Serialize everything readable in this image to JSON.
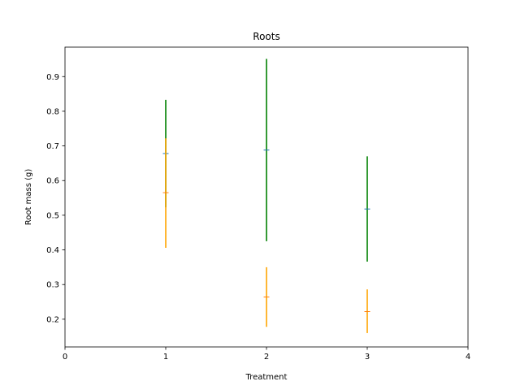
{
  "chart_data": {
    "type": "errorbar",
    "title": "Roots",
    "xlabel": "Treatment",
    "ylabel": "Root mass (g)",
    "xlim": [
      0,
      4
    ],
    "ylim": [
      0.12,
      0.985
    ],
    "xticks": [
      0,
      1,
      2,
      3,
      4
    ],
    "yticks": [
      0.2,
      0.3,
      0.4,
      0.5,
      0.6,
      0.7,
      0.8,
      0.9
    ],
    "xtick_labels": [
      "0",
      "1",
      "2",
      "3",
      "4"
    ],
    "ytick_labels": [
      "0.2",
      "0.3",
      "0.4",
      "0.5",
      "0.6",
      "0.7",
      "0.8",
      "0.9"
    ],
    "grid": false,
    "series": [
      {
        "color": "#008000",
        "marker_color": "#1f77b4",
        "points": [
          {
            "x": 1,
            "y": 0.678,
            "low": 0.523,
            "high": 0.833
          },
          {
            "x": 2,
            "y": 0.688,
            "low": 0.425,
            "high": 0.951
          },
          {
            "x": 3,
            "y": 0.518,
            "low": 0.366,
            "high": 0.67
          }
        ]
      },
      {
        "color": "#ffa500",
        "marker_color": "#ff7f0e",
        "points": [
          {
            "x": 1,
            "y": 0.565,
            "low": 0.406,
            "high": 0.722
          },
          {
            "x": 2,
            "y": 0.264,
            "low": 0.178,
            "high": 0.35
          },
          {
            "x": 3,
            "y": 0.222,
            "low": 0.16,
            "high": 0.286
          }
        ]
      }
    ]
  }
}
